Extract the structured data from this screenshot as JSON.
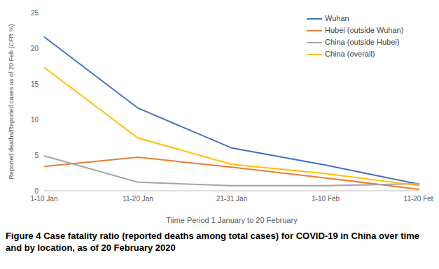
{
  "chart_data": {
    "type": "line",
    "title": "Figure 4 Case fatality ratio (reported deaths among total cases) for COVID-19 in China over time and by location, as of 20 February 2020",
    "x_label": "Tiime Period 1 January to 20 February",
    "y_label": "Reported deaths/Reported cases as of 20 Feb (CFR %)",
    "categories": [
      "1-10 Jan",
      "11-20 Jan",
      "21-31 Jan",
      "1-10 Feb",
      "11-20 Feb"
    ],
    "series": [
      {
        "name": "Wuhan",
        "color": "#4472c4",
        "values": [
          21.6,
          11.6,
          6.0,
          3.6,
          0.9
        ]
      },
      {
        "name": "Hubei (outside Wuhan)",
        "color": "#ed7d31",
        "values": [
          3.4,
          4.7,
          3.3,
          1.8,
          0.2
        ]
      },
      {
        "name": "China (outside Hubei)",
        "color": "#a5a5a5",
        "values": [
          4.9,
          1.2,
          0.7,
          0.7,
          1.0
        ]
      },
      {
        "name": "China (overall)",
        "color": "#ffc000",
        "values": [
          17.3,
          7.4,
          3.7,
          2.4,
          0.7
        ]
      }
    ],
    "ylim": [
      0,
      25
    ],
    "yticks": [
      0,
      5,
      10,
      15,
      20,
      25
    ],
    "grid": false,
    "legend": "top-right",
    "marker": "none"
  }
}
